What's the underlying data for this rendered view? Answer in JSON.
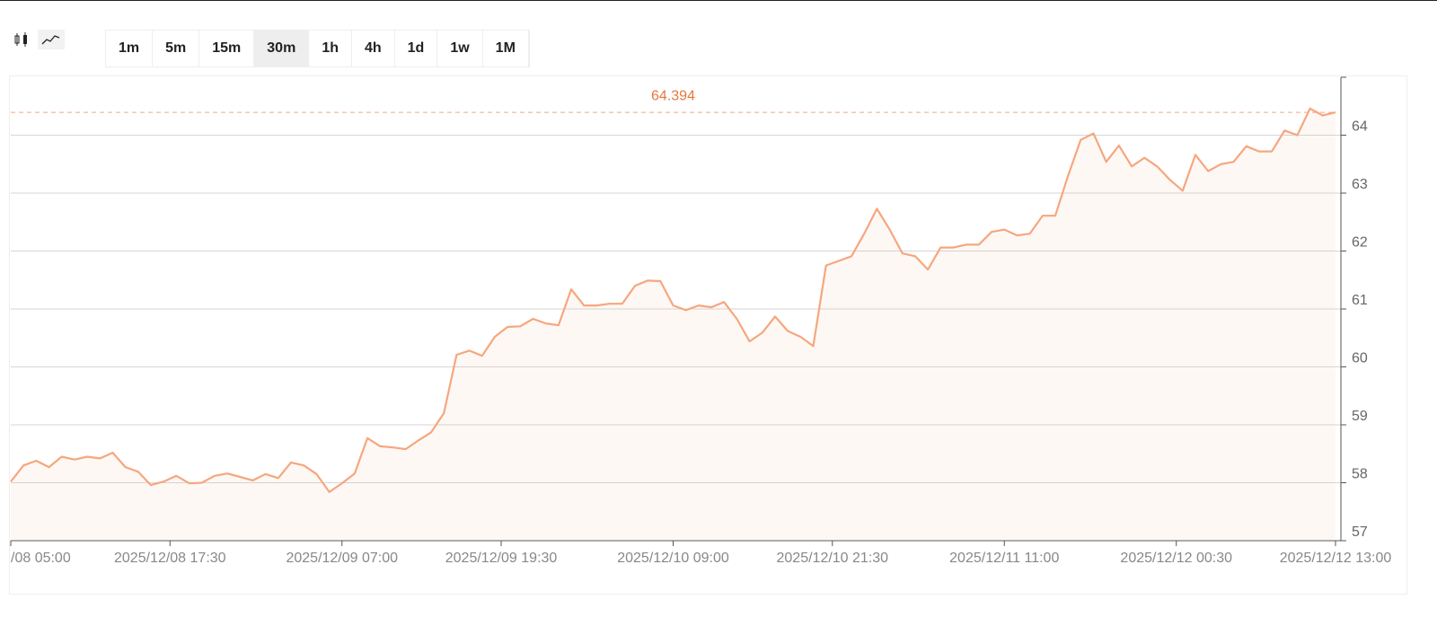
{
  "toolbar": {
    "intervals": [
      "1m",
      "5m",
      "15m",
      "30m",
      "1h",
      "4h",
      "1d",
      "1w",
      "1M"
    ],
    "active_index": 3
  },
  "chart_data": {
    "type": "area",
    "color": "#f5a77e",
    "x": [
      "2025/12/08 05:00",
      "2025/12/08 06:00",
      "2025/12/08 07:00",
      "2025/12/08 08:00",
      "2025/12/08 09:00",
      "2025/12/08 10:00",
      "2025/12/08 11:00",
      "2025/12/08 12:00",
      "2025/12/08 13:00",
      "2025/12/08 14:00",
      "2025/12/08 15:00",
      "2025/12/08 16:00",
      "2025/12/08 17:00",
      "2025/12/08 18:00",
      "2025/12/08 19:00",
      "2025/12/08 20:00",
      "2025/12/08 21:00",
      "2025/12/08 22:00",
      "2025/12/08 23:00",
      "2025/12/09 00:00",
      "2025/12/09 01:00",
      "2025/12/09 02:00",
      "2025/12/09 03:00",
      "2025/12/09 04:00",
      "2025/12/09 05:00",
      "2025/12/09 06:00",
      "2025/12/09 07:00",
      "2025/12/09 08:00",
      "2025/12/09 09:00",
      "2025/12/09 10:00",
      "2025/12/09 11:00",
      "2025/12/09 12:00",
      "2025/12/09 13:00",
      "2025/12/09 14:00",
      "2025/12/09 15:00",
      "2025/12/09 16:00",
      "2025/12/09 17:00",
      "2025/12/09 18:00",
      "2025/12/09 19:00",
      "2025/12/09 20:00",
      "2025/12/09 21:00",
      "2025/12/09 22:00",
      "2025/12/09 23:00",
      "2025/12/10 00:00",
      "2025/12/10 01:00",
      "2025/12/10 02:00",
      "2025/12/10 03:00",
      "2025/12/10 04:00",
      "2025/12/10 05:00",
      "2025/12/10 06:00",
      "2025/12/10 07:00",
      "2025/12/10 08:00",
      "2025/12/10 09:00",
      "2025/12/10 10:00",
      "2025/12/10 11:00",
      "2025/12/10 12:00",
      "2025/12/10 13:00",
      "2025/12/10 14:00",
      "2025/12/10 15:00",
      "2025/12/10 16:00",
      "2025/12/10 17:00",
      "2025/12/10 18:00",
      "2025/12/10 19:00",
      "2025/12/10 20:00",
      "2025/12/10 21:00",
      "2025/12/10 22:00",
      "2025/12/10 23:00",
      "2025/12/11 00:00",
      "2025/12/11 01:00",
      "2025/12/11 02:00",
      "2025/12/11 03:00",
      "2025/12/11 04:00",
      "2025/12/11 05:00",
      "2025/12/11 06:00",
      "2025/12/11 07:00",
      "2025/12/11 08:00",
      "2025/12/11 09:00",
      "2025/12/11 10:00",
      "2025/12/11 11:00",
      "2025/12/11 12:00",
      "2025/12/11 13:00",
      "2025/12/11 14:00",
      "2025/12/11 15:00",
      "2025/12/11 16:00",
      "2025/12/11 17:00",
      "2025/12/11 18:00",
      "2025/12/11 19:00",
      "2025/12/11 20:00",
      "2025/12/11 21:00",
      "2025/12/11 22:00",
      "2025/12/11 23:00",
      "2025/12/12 00:00",
      "2025/12/12 01:00",
      "2025/12/12 02:00",
      "2025/12/12 03:00",
      "2025/12/12 04:00",
      "2025/12/12 05:00",
      "2025/12/12 06:00",
      "2025/12/12 07:00",
      "2025/12/12 08:00",
      "2025/12/12 09:00",
      "2025/12/12 10:00",
      "2025/12/12 11:00",
      "2025/12/12 12:00",
      "2025/12/12 13:00"
    ],
    "values": [
      58.02,
      58.3,
      58.38,
      58.27,
      58.45,
      58.4,
      58.45,
      58.42,
      58.52,
      58.27,
      58.19,
      57.96,
      58.02,
      58.12,
      57.99,
      58.0,
      58.12,
      58.16,
      58.1,
      58.04,
      58.15,
      58.08,
      58.35,
      58.3,
      58.15,
      57.84,
      57.99,
      58.16,
      58.77,
      58.63,
      58.61,
      58.58,
      58.73,
      58.87,
      59.2,
      60.21,
      60.28,
      60.19,
      60.52,
      60.69,
      60.7,
      60.83,
      60.75,
      60.72,
      61.34,
      61.06,
      61.06,
      61.09,
      61.09,
      61.4,
      61.49,
      61.48,
      61.06,
      60.98,
      61.06,
      61.03,
      61.12,
      60.83,
      60.44,
      60.59,
      60.87,
      60.62,
      60.52,
      60.36,
      61.75,
      61.83,
      61.91,
      62.3,
      62.73,
      62.37,
      61.96,
      61.91,
      61.68,
      62.06,
      62.06,
      62.11,
      62.11,
      62.33,
      62.37,
      62.27,
      62.3,
      62.61,
      62.61,
      63.3,
      63.92,
      64.03,
      63.54,
      63.82,
      63.46,
      63.61,
      63.46,
      63.23,
      63.04,
      63.66,
      63.38,
      63.5,
      63.54,
      63.81,
      63.72,
      63.72,
      64.08,
      64.0,
      64.46,
      64.34,
      64.394
    ],
    "price_line": 64.394,
    "ylim": [
      57,
      65
    ],
    "yticks": [
      57,
      58,
      59,
      60,
      61,
      62,
      63,
      64
    ],
    "xlim": [
      "2025/12/08 05:00",
      "2025/12/12 13:00"
    ],
    "xticks": [
      {
        "value": "2025/12/08 05:00",
        "label": "/08 05:00"
      },
      "2025/12/08 17:30",
      "2025/12/09 07:00",
      "2025/12/09 19:30",
      "2025/12/10 09:00",
      "2025/12/10 21:30",
      "2025/12/11 11:00",
      "2025/12/12 00:30",
      "2025/12/12 13:00"
    ],
    "grid": true
  }
}
